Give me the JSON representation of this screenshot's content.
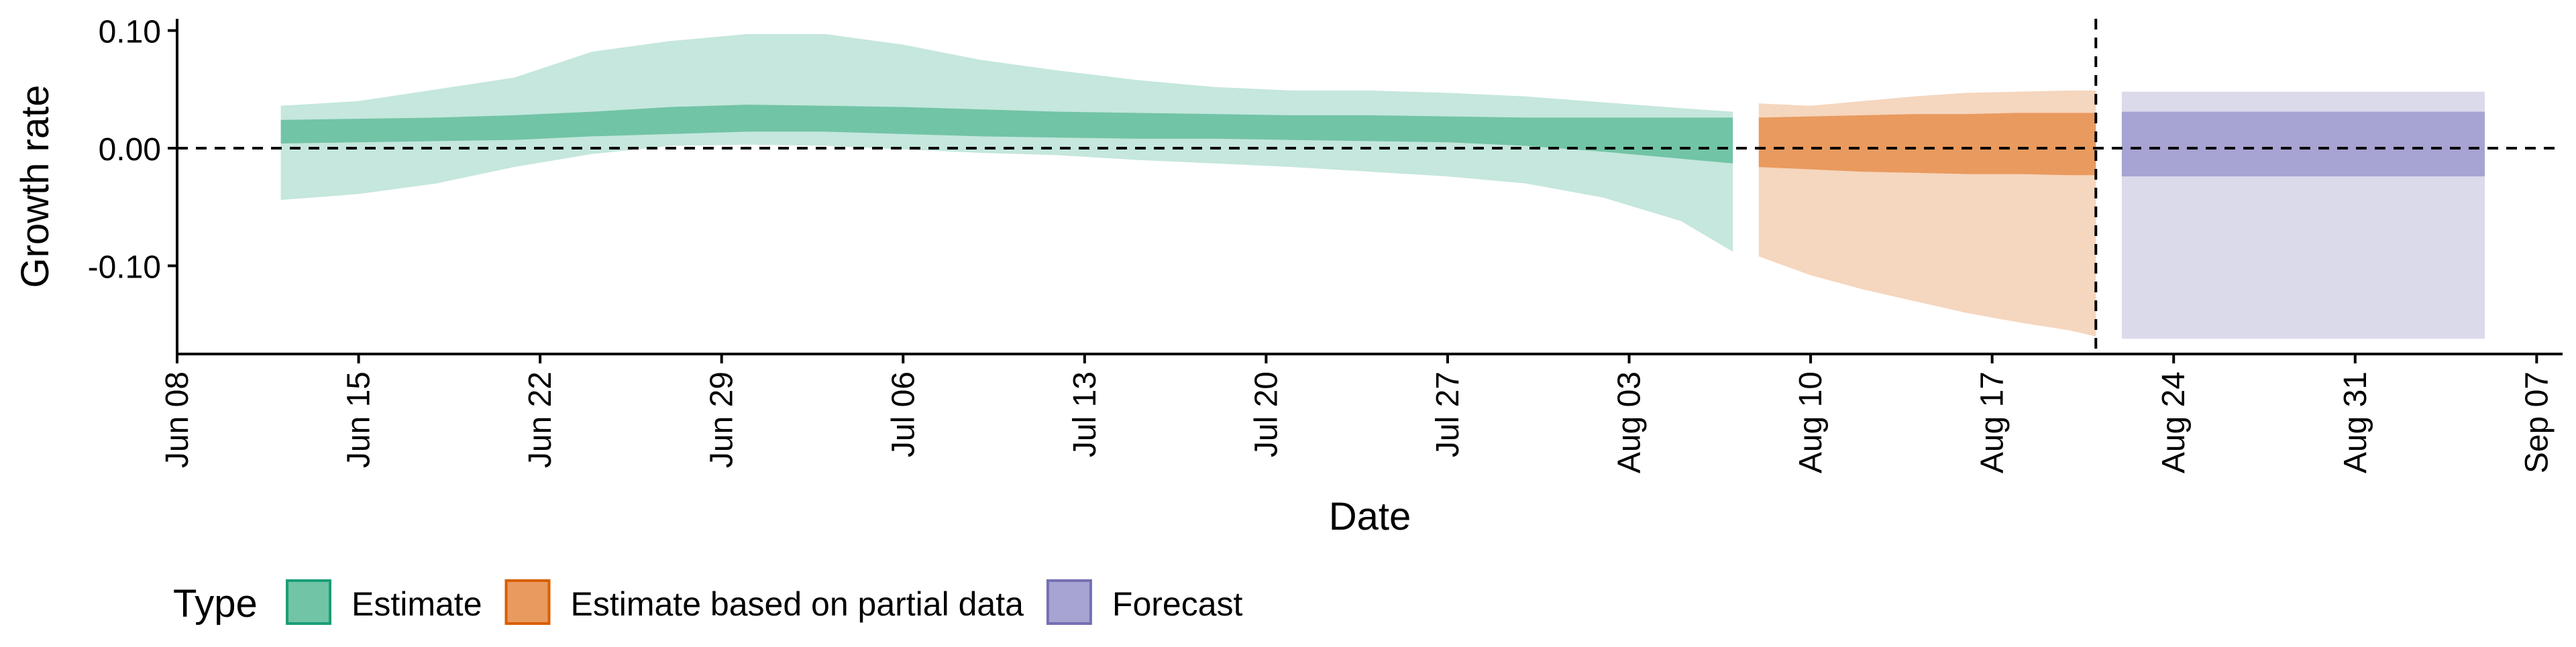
{
  "chart_data": {
    "type": "area",
    "xlabel": "Date",
    "ylabel": "Growth rate",
    "x_axis_type": "date",
    "xlim": [
      "2020-06-08",
      "2020-09-08"
    ],
    "ylim": [
      -0.175,
      0.11
    ],
    "x_ticks": [
      {
        "date": "2020-06-08",
        "label": "Jun 08"
      },
      {
        "date": "2020-06-15",
        "label": "Jun 15"
      },
      {
        "date": "2020-06-22",
        "label": "Jun 22"
      },
      {
        "date": "2020-06-29",
        "label": "Jun 29"
      },
      {
        "date": "2020-07-06",
        "label": "Jul 06"
      },
      {
        "date": "2020-07-13",
        "label": "Jul 13"
      },
      {
        "date": "2020-07-20",
        "label": "Jul 20"
      },
      {
        "date": "2020-07-27",
        "label": "Jul 27"
      },
      {
        "date": "2020-08-03",
        "label": "Aug 03"
      },
      {
        "date": "2020-08-10",
        "label": "Aug 10"
      },
      {
        "date": "2020-08-17",
        "label": "Aug 17"
      },
      {
        "date": "2020-08-24",
        "label": "Aug 24"
      },
      {
        "date": "2020-08-31",
        "label": "Aug 31"
      },
      {
        "date": "2020-09-07",
        "label": "Sep 07"
      }
    ],
    "y_ticks": [
      {
        "value": 0.1,
        "label": "0.10"
      },
      {
        "value": 0.0,
        "label": "0.00"
      },
      {
        "value": -0.1,
        "label": "-0.10"
      }
    ],
    "reference_lines": {
      "horizontal_y": 0.0,
      "vertical_date": "2020-08-21"
    },
    "grid": false,
    "legend": {
      "title": "Type",
      "position": "bottom-left"
    },
    "series": [
      {
        "name": "Estimate",
        "color": "#1b9e77",
        "inner_fill": "#72c4a6",
        "outer_fill": "#c5e7dd",
        "dates": [
          "2020-06-12",
          "2020-06-15",
          "2020-06-18",
          "2020-06-21",
          "2020-06-24",
          "2020-06-27",
          "2020-06-30",
          "2020-07-03",
          "2020-07-06",
          "2020-07-09",
          "2020-07-12",
          "2020-07-15",
          "2020-07-18",
          "2020-07-21",
          "2020-07-24",
          "2020-07-27",
          "2020-07-30",
          "2020-08-02",
          "2020-08-05",
          "2020-08-07"
        ],
        "lower_90": [
          -0.044,
          -0.039,
          -0.03,
          -0.016,
          -0.005,
          0.002,
          0.003,
          0.002,
          -0.001,
          -0.004,
          -0.006,
          -0.01,
          -0.013,
          -0.016,
          -0.02,
          -0.024,
          -0.03,
          -0.042,
          -0.062,
          -0.088
        ],
        "upper_90": [
          0.036,
          0.04,
          0.05,
          0.06,
          0.082,
          0.091,
          0.097,
          0.097,
          0.088,
          0.075,
          0.066,
          0.058,
          0.052,
          0.049,
          0.049,
          0.047,
          0.044,
          0.039,
          0.034,
          0.031
        ],
        "lower_50": [
          0.004,
          0.005,
          0.006,
          0.007,
          0.01,
          0.012,
          0.014,
          0.014,
          0.012,
          0.01,
          0.009,
          0.008,
          0.008,
          0.007,
          0.006,
          0.005,
          0.002,
          -0.003,
          -0.009,
          -0.013
        ],
        "upper_50": [
          0.024,
          0.025,
          0.026,
          0.028,
          0.031,
          0.035,
          0.037,
          0.036,
          0.035,
          0.033,
          0.031,
          0.03,
          0.029,
          0.028,
          0.028,
          0.027,
          0.026,
          0.026,
          0.026,
          0.026
        ]
      },
      {
        "name": "Estimate based on partial data",
        "color": "#d95f02",
        "inner_fill": "#e99a5f",
        "outer_fill": "#f5d6be",
        "dates": [
          "2020-08-08",
          "2020-08-10",
          "2020-08-12",
          "2020-08-14",
          "2020-08-16",
          "2020-08-18",
          "2020-08-20",
          "2020-08-21"
        ],
        "lower_90": [
          -0.092,
          -0.108,
          -0.12,
          -0.13,
          -0.14,
          -0.148,
          -0.155,
          -0.16
        ],
        "upper_90": [
          0.038,
          0.036,
          0.04,
          0.044,
          0.047,
          0.048,
          0.049,
          0.049
        ],
        "lower_50": [
          -0.016,
          -0.018,
          -0.02,
          -0.021,
          -0.022,
          -0.022,
          -0.023,
          -0.023
        ],
        "upper_50": [
          0.026,
          0.027,
          0.028,
          0.029,
          0.029,
          0.03,
          0.03,
          0.03
        ]
      },
      {
        "name": "Forecast",
        "color": "#7570b3",
        "inner_fill": "#a7a3d2",
        "outer_fill": "#dbdaeb",
        "dates": [
          "2020-08-22",
          "2020-09-05"
        ],
        "lower_90": [
          -0.162,
          -0.162
        ],
        "upper_90": [
          0.048,
          0.048
        ],
        "lower_50": [
          -0.024,
          -0.024
        ],
        "upper_50": [
          0.031,
          0.031
        ]
      }
    ]
  }
}
